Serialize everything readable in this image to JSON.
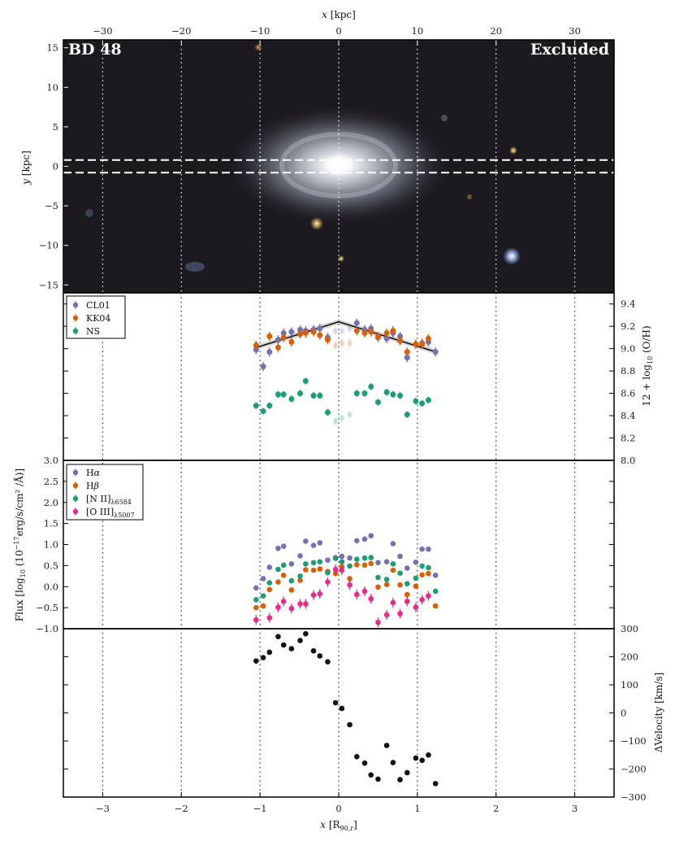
{
  "overlay": {
    "galaxy_name": "BD 48",
    "status": "Excluded"
  },
  "colors": {
    "CL01": "#7570b3",
    "KK04": "#d95f02",
    "NS": "#1b9e77",
    "Halpha": "#7570b3",
    "Hbeta": "#d95f02",
    "NII": "#1b9e77",
    "OIII": "#e7298a",
    "velocity": "#111111"
  },
  "labels": {
    "top_x": {
      "main": "x",
      "unit": " [kpc]"
    },
    "image_y": {
      "main": "y",
      "unit": " [kpc]"
    },
    "metal_y": {
      "pre": "12 + log",
      "sub": "10",
      "post": " (O/H)"
    },
    "flux_y": {
      "pre": "Flux [log",
      "sub": "10",
      "mid": " (10",
      "sup": "−17",
      "post": "erg/s/cm² /Å)]"
    },
    "vel_y": "ΔVelocity [km/s]",
    "bottom_x": {
      "main": "x",
      "bracket": " [R",
      "sub": "90,r",
      "close": "]"
    }
  },
  "chart_data": [
    {
      "type": "image",
      "xlim_kpc": [
        -35,
        35
      ],
      "ylim_kpc": [
        -16,
        16
      ],
      "top_ticks": [
        -30,
        -20,
        -10,
        0,
        10,
        20,
        30
      ],
      "y_ticks": [
        15,
        10,
        5,
        0,
        -5,
        -10,
        -15
      ],
      "slit_kpc": [
        -0.8,
        0.8
      ],
      "grid": "vertical dotted"
    },
    {
      "type": "scatter",
      "ylim": [
        8.0,
        9.5
      ],
      "y_ticks": [
        "9.4",
        "9.2",
        "9.0",
        "8.8",
        "8.6",
        "8.4",
        "8.2",
        "8.0"
      ],
      "legend": "top-left",
      "excluded_indices": [
        11,
        12,
        13
      ],
      "series": [
        {
          "name": "CL01",
          "key": "CL01",
          "yerr": 0.04,
          "values": [
            8.99,
            8.84,
            8.97,
            9.08,
            9.14,
            9.15,
            9.17,
            9.16,
            9.17,
            9.18,
            9.1,
            9.16,
            9.16,
            9.18,
            9.23,
            9.17,
            9.18,
            9.1,
            9.09,
            9.14,
            9.11,
            8.92,
            9.04,
            9.05,
            9.06,
            8.97
          ]
        },
        {
          "name": "KK04",
          "key": "KK04",
          "yerr": 0.04,
          "values": [
            9.03,
            null,
            9.11,
            9.01,
            9.1,
            9.06,
            9.13,
            9.14,
            9.15,
            9.12,
            9.08,
            9.03,
            9.05,
            9.05,
            9.16,
            9.14,
            9.15,
            9.11,
            9.14,
            9.16,
            9.07,
            8.97,
            9.04,
            9.04,
            9.09,
            null
          ]
        },
        {
          "name": "NS",
          "key": "NS",
          "yerr": 0.03,
          "values": [
            8.49,
            8.44,
            8.49,
            8.59,
            8.59,
            8.55,
            8.6,
            8.71,
            8.58,
            8.58,
            8.43,
            8.35,
            8.38,
            8.41,
            8.6,
            8.6,
            8.66,
            8.52,
            8.61,
            8.59,
            8.58,
            8.41,
            8.53,
            8.51,
            8.54,
            null
          ]
        }
      ],
      "fit_line": {
        "x": [
          -1.05,
          0,
          1.24
        ],
        "y": [
          9.01,
          9.24,
          8.97
        ]
      }
    },
    {
      "type": "scatter",
      "ylim": [
        -1.0,
        3.0
      ],
      "y_ticks": [
        "3.0",
        "2.5",
        "2.0",
        "1.5",
        "1.0",
        "0.5",
        "0.0",
        "−0.5",
        "−1.0"
      ],
      "legend": "top-left",
      "series": [
        {
          "name": "Hα",
          "key": "Halpha",
          "legend": {
            "main": "H",
            "greek": "α"
          },
          "values": [
            -0.03,
            0.19,
            0.46,
            0.91,
            0.96,
            0.54,
            0.73,
            1.08,
            0.98,
            1.04,
            0.63,
            0.69,
            0.72,
            0.68,
            1.09,
            1.13,
            1.21,
            0.57,
            0.59,
            1.02,
            0.72,
            0.44,
            0.58,
            0.89,
            0.89,
            0.27
          ]
        },
        {
          "name": "Hβ",
          "key": "Hbeta",
          "legend": {
            "main": "H",
            "greek": "β"
          },
          "values": [
            -0.5,
            -0.46,
            -0.07,
            0.11,
            0.27,
            -0.08,
            0.15,
            0.4,
            0.39,
            0.42,
            0.36,
            0.31,
            0.47,
            0.19,
            0.52,
            0.51,
            0.55,
            -0.01,
            0.05,
            0.39,
            0.04,
            -0.19,
            0.01,
            0.28,
            0.31,
            -0.46
          ]
        },
        {
          "name": "[N II]λ6584",
          "key": "NII",
          "legend": {
            "main": "[N II]",
            "sub": "λ6584"
          },
          "values": [
            -0.31,
            -0.22,
            0.09,
            0.41,
            0.51,
            0.14,
            0.25,
            0.54,
            0.57,
            0.59,
            0.33,
            0.67,
            0.59,
            0.49,
            0.65,
            0.68,
            0.69,
            0.22,
            0.17,
            0.54,
            0.32,
            0.07,
            0.2,
            0.49,
            0.45,
            -0.11
          ]
        },
        {
          "name": "[O III]λ5007",
          "key": "OIII",
          "legend": {
            "main": "[O III]",
            "sub": "λ5007"
          },
          "values": [
            -0.79,
            null,
            -0.74,
            -0.49,
            -0.35,
            -0.52,
            -0.41,
            -0.41,
            -0.2,
            -0.17,
            0.11,
            0.41,
            0.39,
            0.04,
            -0.19,
            -0.11,
            -0.29,
            -0.85,
            -0.67,
            -0.38,
            -0.64,
            -0.35,
            -0.49,
            -0.31,
            -0.22,
            null
          ]
        }
      ]
    },
    {
      "type": "scatter",
      "ylim": [
        -300,
        300
      ],
      "y_ticks": [
        "300",
        "200",
        "100",
        "0",
        "−100",
        "−200",
        "−300"
      ],
      "series": [
        {
          "key": "velocity",
          "values": [
            185,
            197,
            216,
            272,
            242,
            229,
            258,
            282,
            221,
            203,
            182,
            36,
            16,
            -42,
            -156,
            -179,
            -221,
            -236,
            -116,
            -177,
            -238,
            -213,
            -161,
            -169,
            -150,
            -252
          ]
        }
      ]
    }
  ],
  "x_R90": [
    -1.05,
    -0.96,
    -0.88,
    -0.77,
    -0.7,
    -0.6,
    -0.49,
    -0.42,
    -0.32,
    -0.24,
    -0.14,
    -0.04,
    0.04,
    0.14,
    0.23,
    0.33,
    0.41,
    0.5,
    0.61,
    0.69,
    0.78,
    0.87,
    0.98,
    1.06,
    1.14,
    1.23
  ],
  "xlim_R90": [
    -3.5,
    3.5
  ],
  "bottom_ticks": [
    "−3",
    "−2",
    "−1",
    "0",
    "1",
    "2",
    "3"
  ]
}
